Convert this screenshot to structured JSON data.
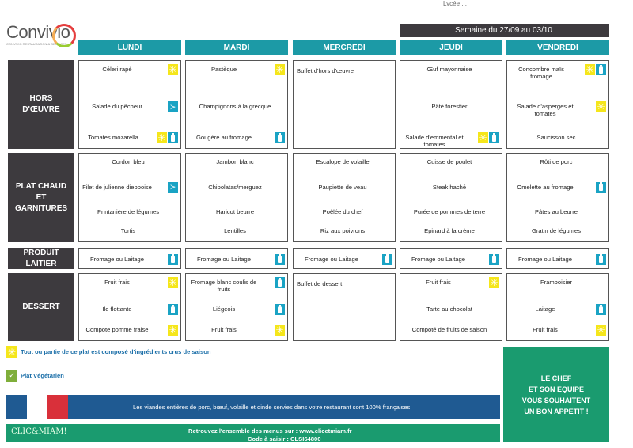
{
  "brand": {
    "name": "Convivio",
    "tagline": "CONVIVIO RESTAURATION & SERVICES"
  },
  "top_cut_text": "Lycée ...",
  "week_label": "Semaine du 27/09 au 03/10",
  "days": [
    "LUNDI",
    "MARDI",
    "MERCREDI",
    "JEUDI",
    "VENDREDI"
  ],
  "rows": [
    {
      "label": "HORS D'ŒUVRE",
      "cells": [
        [
          {
            "text": "Céleri rapé",
            "icons": [
              "sun-icon"
            ]
          },
          {
            "text": "Salade du pêcheur",
            "icons": [
              "fish-icon"
            ]
          },
          {
            "text": "Tomates mozarella",
            "icons": [
              "sun-icon",
              "milk-icon"
            ]
          }
        ],
        [
          {
            "text": "Pastèque",
            "icons": [
              "sun-icon"
            ]
          },
          {
            "text": "Champignons à la grecque",
            "icons": []
          },
          {
            "text": "Gougère au fromage",
            "icons": [
              "milk-icon"
            ]
          }
        ],
        [
          {
            "text": "Buffet d'hors d'œuvre",
            "icons": []
          }
        ],
        [
          {
            "text": "Œuf mayonnaise",
            "icons": []
          },
          {
            "text": "Pâté forestier",
            "icons": []
          },
          {
            "text": "Salade d'emmental et tomates",
            "icons": [
              "sun-icon",
              "milk-icon"
            ]
          }
        ],
        [
          {
            "text": "Concombre maïs fromage",
            "icons": [
              "sun-icon",
              "milk-icon"
            ]
          },
          {
            "text": "Salade d'asperges et tomates",
            "icons": [
              "sun-icon"
            ]
          },
          {
            "text": "Saucisson sec",
            "icons": []
          }
        ]
      ]
    },
    {
      "label": "PLAT CHAUD ET GARNITURES",
      "cells": [
        [
          {
            "text": "Cordon bleu",
            "icons": []
          },
          {
            "text": "Filet de julienne dieppoise",
            "icons": [
              "fish-icon"
            ]
          },
          {
            "text": "Printanière de légumes",
            "icons": []
          },
          {
            "text": "Tortis",
            "icons": []
          }
        ],
        [
          {
            "text": "Jambon blanc",
            "icons": []
          },
          {
            "text": "Chipolatas/merguez",
            "icons": []
          },
          {
            "text": "Haricot beurre",
            "icons": []
          },
          {
            "text": "Lentilles",
            "icons": []
          }
        ],
        [
          {
            "text": "Escalope de volaille",
            "icons": []
          },
          {
            "text": "Paupiette de veau",
            "icons": []
          },
          {
            "text": "Poêlée du chef",
            "icons": []
          },
          {
            "text": "Riz aux poivrons",
            "icons": []
          }
        ],
        [
          {
            "text": "Cuisse de poulet",
            "icons": []
          },
          {
            "text": "Steak haché",
            "icons": []
          },
          {
            "text": "Purée de pommes de terre",
            "icons": []
          },
          {
            "text": "Epinard à la crème",
            "icons": []
          }
        ],
        [
          {
            "text": "Rôti de porc",
            "icons": []
          },
          {
            "text": "Omelette au fromage",
            "icons": [
              "milk-icon"
            ]
          },
          {
            "text": "Pâtes au beurre",
            "icons": []
          },
          {
            "text": "Gratin de légumes",
            "icons": []
          }
        ]
      ]
    },
    {
      "label": "PRODUIT LAITIER",
      "cells": [
        [
          {
            "text": "Fromage ou Laitage",
            "icons": [
              "milk-icon"
            ]
          }
        ],
        [
          {
            "text": "Fromage ou Laitage",
            "icons": [
              "milk-icon"
            ]
          }
        ],
        [
          {
            "text": "Fromage ou Laitage",
            "icons": [
              "milk-icon"
            ]
          }
        ],
        [
          {
            "text": "Fromage ou Laitage",
            "icons": [
              "milk-icon"
            ]
          }
        ],
        [
          {
            "text": "Fromage ou Laitage",
            "icons": [
              "milk-icon"
            ]
          }
        ]
      ]
    },
    {
      "label": "DESSERT",
      "cells": [
        [
          {
            "text": "Fruit frais",
            "icons": [
              "sun-icon"
            ]
          },
          {
            "text": "Ile flottante",
            "icons": [
              "milk-icon"
            ]
          },
          {
            "text": "Compote pomme fraise",
            "icons": [
              "sun-icon"
            ]
          }
        ],
        [
          {
            "text": "Fromage blanc coulis de fruits",
            "icons": [
              "milk-icon"
            ]
          },
          {
            "text": "Liégeois",
            "icons": [
              "milk-icon"
            ]
          },
          {
            "text": "Fruit frais",
            "icons": [
              "sun-icon"
            ]
          }
        ],
        [
          {
            "text": "Buffet de dessert",
            "icons": []
          }
        ],
        [
          {
            "text": "Fruit frais",
            "icons": [
              "sun-icon"
            ]
          },
          {
            "text": "Tarte au chocolat",
            "icons": []
          },
          {
            "text": "Compoté de fruits de saison",
            "icons": []
          }
        ],
        [
          {
            "text": "Framboisier",
            "icons": []
          },
          {
            "text": "Laitage",
            "icons": [
              "milk-icon"
            ]
          },
          {
            "text": "Fruit frais",
            "icons": [
              "sun-icon"
            ]
          }
        ]
      ]
    }
  ],
  "legend": {
    "season": "Tout ou partie de ce plat est composé d'ingrédients crus de saison",
    "veg": "Plat Végétarien"
  },
  "chef_message": [
    "LE CHEF",
    "ET SON EQUIPE",
    "VOUS SOUHAITENT",
    "UN BON APPETIT !"
  ],
  "origin_text": "Les viandes entières de porc, bœuf, volaille et dinde servies dans votre restaurant sont 100% françaises.",
  "clicmiam": {
    "logo": "CLIC&MIAM!",
    "line1": "Retrouvez l'ensemble des menus sur : www.clicetmiam.fr",
    "line2": "Code à saisir : CLSI64800"
  },
  "colors": {
    "teal": "#1c9aa6",
    "dark": "#3d3a3e",
    "sun": "#f5e61b",
    "milk": "#1aa3c4",
    "green": "#1a9b6f",
    "blue": "#1f5a92"
  }
}
